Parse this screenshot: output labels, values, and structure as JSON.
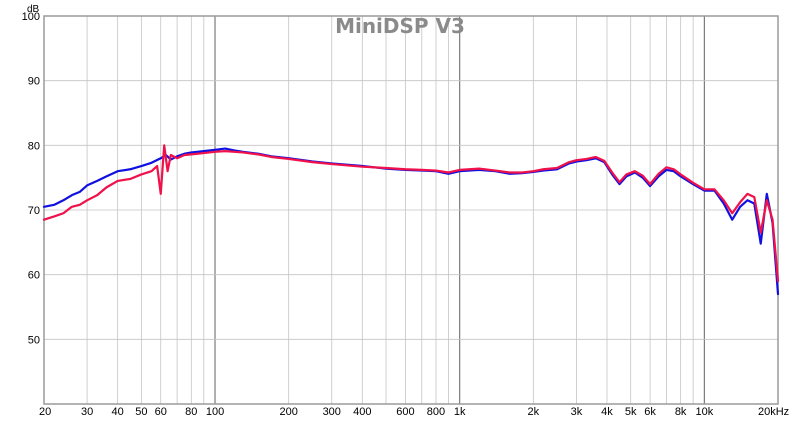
{
  "chart_data": {
    "type": "line",
    "title": "MiniDSP V3",
    "ylabel": "dB",
    "xlabel": "",
    "x_scale": "log",
    "xlim": [
      20,
      20000
    ],
    "ylim": [
      40,
      100
    ],
    "grid": true,
    "y_ticks": [
      {
        "value": 100,
        "label": "100"
      },
      {
        "value": 90,
        "label": "90"
      },
      {
        "value": 80,
        "label": "80"
      },
      {
        "value": 70,
        "label": "70"
      },
      {
        "value": 60,
        "label": "60"
      },
      {
        "value": 50,
        "label": "50"
      }
    ],
    "x_ticks": [
      {
        "value": 20,
        "label": "20"
      },
      {
        "value": 30,
        "label": "30"
      },
      {
        "value": 40,
        "label": "40"
      },
      {
        "value": 50,
        "label": "50"
      },
      {
        "value": 60,
        "label": "60"
      },
      {
        "value": 80,
        "label": "80"
      },
      {
        "value": 100,
        "label": "100"
      },
      {
        "value": 200,
        "label": "200"
      },
      {
        "value": 300,
        "label": "300"
      },
      {
        "value": 400,
        "label": "400"
      },
      {
        "value": 600,
        "label": "600"
      },
      {
        "value": 800,
        "label": "800"
      },
      {
        "value": 1000,
        "label": "1k"
      },
      {
        "value": 2000,
        "label": "2k"
      },
      {
        "value": 3000,
        "label": "3k"
      },
      {
        "value": 4000,
        "label": "4k"
      },
      {
        "value": 5000,
        "label": "5k"
      },
      {
        "value": 6000,
        "label": "6k"
      },
      {
        "value": 8000,
        "label": "8k"
      },
      {
        "value": 10000,
        "label": "10k"
      },
      {
        "value": 20000,
        "label": "20kHz"
      }
    ],
    "series": [
      {
        "color": "#1010e0",
        "points": [
          [
            20,
            70.5
          ],
          [
            22,
            70.8
          ],
          [
            24,
            71.5
          ],
          [
            26,
            72.3
          ],
          [
            28,
            72.8
          ],
          [
            30,
            73.8
          ],
          [
            33,
            74.5
          ],
          [
            36,
            75.2
          ],
          [
            40,
            76.0
          ],
          [
            45,
            76.3
          ],
          [
            50,
            76.8
          ],
          [
            55,
            77.3
          ],
          [
            60,
            78.0
          ],
          [
            63,
            78.5
          ],
          [
            66,
            77.8
          ],
          [
            70,
            78.3
          ],
          [
            75,
            78.7
          ],
          [
            80,
            78.9
          ],
          [
            90,
            79.1
          ],
          [
            100,
            79.3
          ],
          [
            110,
            79.5
          ],
          [
            120,
            79.2
          ],
          [
            130,
            79.0
          ],
          [
            150,
            78.7
          ],
          [
            170,
            78.3
          ],
          [
            200,
            78.0
          ],
          [
            250,
            77.5
          ],
          [
            300,
            77.2
          ],
          [
            400,
            76.8
          ],
          [
            500,
            76.4
          ],
          [
            600,
            76.2
          ],
          [
            700,
            76.1
          ],
          [
            800,
            76.0
          ],
          [
            900,
            75.6
          ],
          [
            1000,
            76.0
          ],
          [
            1200,
            76.2
          ],
          [
            1400,
            76.0
          ],
          [
            1600,
            75.6
          ],
          [
            1800,
            75.7
          ],
          [
            2000,
            75.9
          ],
          [
            2200,
            76.1
          ],
          [
            2500,
            76.3
          ],
          [
            2800,
            77.2
          ],
          [
            3000,
            77.5
          ],
          [
            3300,
            77.7
          ],
          [
            3600,
            78.0
          ],
          [
            3900,
            77.4
          ],
          [
            4200,
            75.5
          ],
          [
            4500,
            74.0
          ],
          [
            4800,
            75.2
          ],
          [
            5200,
            75.8
          ],
          [
            5600,
            75.0
          ],
          [
            6000,
            73.7
          ],
          [
            6500,
            75.2
          ],
          [
            7000,
            76.2
          ],
          [
            7500,
            76.0
          ],
          [
            8000,
            75.2
          ],
          [
            9000,
            74.0
          ],
          [
            10000,
            73.0
          ],
          [
            11000,
            73.0
          ],
          [
            12000,
            71.0
          ],
          [
            13000,
            68.5
          ],
          [
            14000,
            70.5
          ],
          [
            15000,
            71.5
          ],
          [
            16000,
            71.0
          ],
          [
            17000,
            64.8
          ],
          [
            18000,
            72.5
          ],
          [
            19000,
            68.0
          ],
          [
            20000,
            57.0
          ]
        ]
      },
      {
        "color": "#f0104a",
        "points": [
          [
            20,
            68.5
          ],
          [
            22,
            69.0
          ],
          [
            24,
            69.5
          ],
          [
            26,
            70.5
          ],
          [
            28,
            70.8
          ],
          [
            30,
            71.5
          ],
          [
            33,
            72.3
          ],
          [
            36,
            73.5
          ],
          [
            40,
            74.5
          ],
          [
            45,
            74.8
          ],
          [
            50,
            75.5
          ],
          [
            55,
            76.0
          ],
          [
            58,
            76.8
          ],
          [
            60,
            72.5
          ],
          [
            62,
            80.0
          ],
          [
            64,
            76.0
          ],
          [
            66,
            78.5
          ],
          [
            70,
            78.0
          ],
          [
            75,
            78.5
          ],
          [
            80,
            78.6
          ],
          [
            90,
            78.8
          ],
          [
            100,
            79.0
          ],
          [
            110,
            79.1
          ],
          [
            120,
            79.0
          ],
          [
            130,
            78.9
          ],
          [
            150,
            78.6
          ],
          [
            170,
            78.2
          ],
          [
            200,
            77.9
          ],
          [
            250,
            77.4
          ],
          [
            300,
            77.1
          ],
          [
            400,
            76.7
          ],
          [
            500,
            76.5
          ],
          [
            600,
            76.3
          ],
          [
            700,
            76.2
          ],
          [
            800,
            76.1
          ],
          [
            900,
            75.8
          ],
          [
            1000,
            76.2
          ],
          [
            1200,
            76.4
          ],
          [
            1400,
            76.1
          ],
          [
            1600,
            75.8
          ],
          [
            1800,
            75.8
          ],
          [
            2000,
            76.0
          ],
          [
            2200,
            76.3
          ],
          [
            2500,
            76.5
          ],
          [
            2800,
            77.4
          ],
          [
            3000,
            77.7
          ],
          [
            3300,
            77.9
          ],
          [
            3600,
            78.2
          ],
          [
            3900,
            77.6
          ],
          [
            4200,
            75.8
          ],
          [
            4500,
            74.3
          ],
          [
            4800,
            75.5
          ],
          [
            5200,
            76.0
          ],
          [
            5600,
            75.3
          ],
          [
            6000,
            74.0
          ],
          [
            6500,
            75.6
          ],
          [
            7000,
            76.6
          ],
          [
            7500,
            76.3
          ],
          [
            8000,
            75.5
          ],
          [
            9000,
            74.2
          ],
          [
            10000,
            73.2
          ],
          [
            11000,
            73.2
          ],
          [
            12000,
            71.5
          ],
          [
            13000,
            69.5
          ],
          [
            14000,
            71.2
          ],
          [
            15000,
            72.5
          ],
          [
            16000,
            72.0
          ],
          [
            17000,
            66.5
          ],
          [
            18000,
            71.5
          ],
          [
            19000,
            68.5
          ],
          [
            20000,
            59.0
          ]
        ]
      }
    ]
  }
}
